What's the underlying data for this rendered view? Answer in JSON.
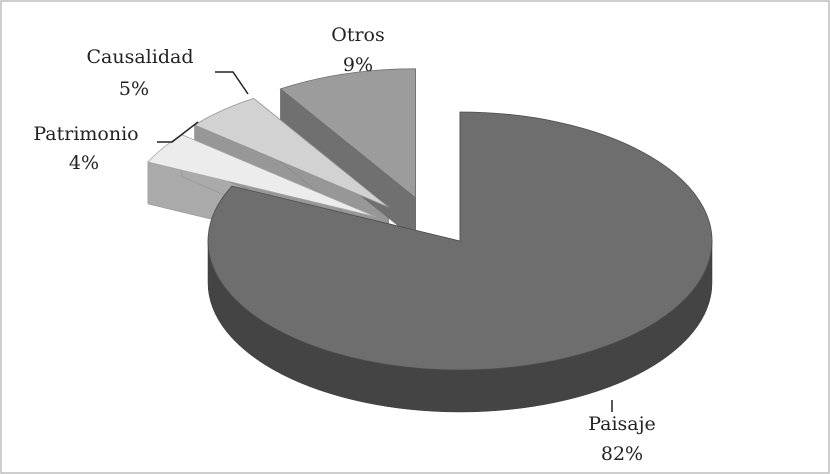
{
  "chart_data": {
    "type": "pie3d",
    "categories": [
      "Paisaje",
      "Patrimonio",
      "Causalidad",
      "Otros"
    ],
    "values": [
      82,
      4,
      5,
      9
    ],
    "value_labels": [
      "82%",
      "4%",
      "5%",
      "9%"
    ],
    "colors": [
      "#6e6e6e",
      "#ececec",
      "#d2d2d2",
      "#9c9c9c"
    ]
  }
}
